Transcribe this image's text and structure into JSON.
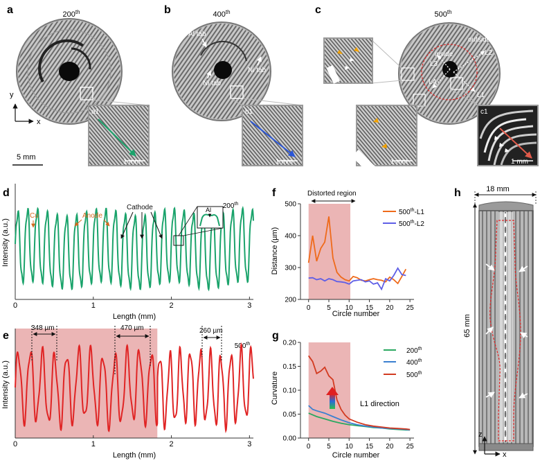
{
  "panel_letters": {
    "a": "a",
    "b": "b",
    "c": "c",
    "d": "d",
    "e": "e",
    "f": "f",
    "g": "g",
    "h": "h"
  },
  "ct_images": {
    "a": {
      "cycle_num": "200",
      "sup": "th",
      "inset": "a1",
      "inset_scale": "1 mm",
      "scale_bar": "5 mm",
      "axis_y": "y",
      "axis_x": "x"
    },
    "b": {
      "cycle_num": "400",
      "sup": "th",
      "inset": "b1",
      "inset_scale": "1 mm",
      "al_tab": "Al tab",
      "ni_tab_1": "Ni tab",
      "ni_tab_2": "Ni tab"
    },
    "c": {
      "cycle_num": "500",
      "sup": "th",
      "inset": "c1",
      "inset_scale": "1 mm",
      "inset_scale_2": "1 mm",
      "inside": "inside",
      "outside": "outside",
      "L1": "L1",
      "L2": "L2",
      "L3": "L3",
      "L4": "L4"
    }
  },
  "panel_h": {
    "width_label": "18 mm",
    "height_label": "65 mm",
    "axis_z": "z",
    "axis_x": "x"
  },
  "chart_data": [
    {
      "id": "d",
      "type": "line",
      "title": "200th",
      "xlabel": "Length (mm)",
      "ylabel": "Intensity (a.u.)",
      "xlim": [
        0,
        3.05
      ],
      "ylim": [
        0,
        1
      ],
      "xticks": [
        "0",
        "1",
        "2",
        "3"
      ],
      "period_mm": 0.125,
      "series": [
        {
          "name": "200th",
          "color": "#1aa36b"
        }
      ],
      "annotations": {
        "cu": "Cu",
        "anode": "Anode",
        "cathode": "Cathode",
        "al": "Al"
      }
    },
    {
      "id": "e",
      "type": "line",
      "title": "500th",
      "xlabel": "Length (mm)",
      "ylabel": "Intensity (a.u.)",
      "xlim": [
        0,
        3.05
      ],
      "ylim": [
        0,
        1
      ],
      "xticks": [
        "0",
        "1",
        "2",
        "3"
      ],
      "shaded_x": [
        0,
        1.82
      ],
      "series": [
        {
          "name": "500th",
          "color": "#e02424"
        }
      ],
      "annotations": {
        "d1": "348 µm",
        "d2": "470 µm",
        "d3": "260 µm"
      }
    },
    {
      "id": "f",
      "type": "line",
      "xlabel": "Circle number",
      "ylabel": "Distance (µm)",
      "xlim": [
        -2,
        26
      ],
      "ylim": [
        200,
        500
      ],
      "xticks": [
        0,
        5,
        10,
        15,
        20,
        25
      ],
      "yticks": [
        200,
        300,
        400,
        500
      ],
      "shaded_x": [
        0,
        10.3
      ],
      "region_label": "Distorted region",
      "series": [
        {
          "name": "500",
          "sup": "th",
          "suffix": "-L1",
          "color": "#ef6a1a",
          "x": [
            0,
            1,
            2,
            3,
            4,
            5,
            6,
            7,
            8,
            9,
            10,
            11,
            12,
            13,
            14,
            15,
            16,
            17,
            18,
            19,
            20,
            21,
            22,
            23,
            24
          ],
          "y": [
            315,
            400,
            320,
            360,
            380,
            460,
            330,
            285,
            270,
            262,
            258,
            272,
            268,
            260,
            258,
            262,
            265,
            262,
            260,
            255,
            270,
            262,
            250,
            272,
            295
          ]
        },
        {
          "name": "500",
          "sup": "th",
          "suffix": "-L2",
          "color": "#5e5ee6",
          "x": [
            0,
            1,
            2,
            3,
            4,
            5,
            6,
            7,
            8,
            9,
            10,
            11,
            12,
            13,
            14,
            15,
            16,
            17,
            18,
            19,
            20,
            21,
            22,
            23,
            24
          ],
          "y": [
            267,
            268,
            262,
            265,
            258,
            265,
            262,
            256,
            255,
            253,
            248,
            258,
            260,
            262,
            255,
            258,
            248,
            252,
            232,
            265,
            258,
            275,
            298,
            278,
            275
          ]
        }
      ]
    },
    {
      "id": "g",
      "type": "line",
      "xlabel": "Circle number",
      "ylabel": "Curvature",
      "xlim": [
        -2,
        26
      ],
      "ylim": [
        0,
        0.2
      ],
      "xticks": [
        0,
        5,
        10,
        15,
        20,
        25
      ],
      "yticks": [
        "0.00",
        "0.05",
        "0.10",
        "0.15",
        "0.20"
      ],
      "shaded_x": [
        0,
        10.3
      ],
      "direction_label": "L1 direction",
      "series": [
        {
          "name": "200",
          "sup": "th",
          "color": "#2aa860",
          "x": [
            0,
            2,
            4,
            6,
            8,
            10,
            12,
            14,
            16,
            18,
            20,
            22,
            24,
            25
          ],
          "y": [
            0.052,
            0.045,
            0.04,
            0.035,
            0.031,
            0.028,
            0.026,
            0.024,
            0.022,
            0.021,
            0.019,
            0.018,
            0.017,
            0.017
          ]
        },
        {
          "name": "400",
          "sup": "th",
          "color": "#3a7fd0",
          "x": [
            0,
            1,
            2,
            4,
            6,
            8,
            10,
            12,
            14,
            16,
            18,
            20,
            22,
            24,
            25
          ],
          "y": [
            0.068,
            0.06,
            0.057,
            0.052,
            0.045,
            0.038,
            0.032,
            0.028,
            0.025,
            0.023,
            0.021,
            0.02,
            0.019,
            0.018,
            0.017
          ]
        },
        {
          "name": "500",
          "sup": "th",
          "color": "#d23a20",
          "x": [
            0,
            1,
            2,
            3,
            4,
            5,
            6,
            7,
            8,
            9,
            10,
            12,
            14,
            16,
            18,
            20,
            22,
            24,
            25
          ],
          "y": [
            0.172,
            0.16,
            0.135,
            0.14,
            0.148,
            0.13,
            0.122,
            0.08,
            0.06,
            0.048,
            0.04,
            0.033,
            0.028,
            0.025,
            0.023,
            0.021,
            0.02,
            0.019,
            0.018
          ]
        }
      ]
    }
  ]
}
